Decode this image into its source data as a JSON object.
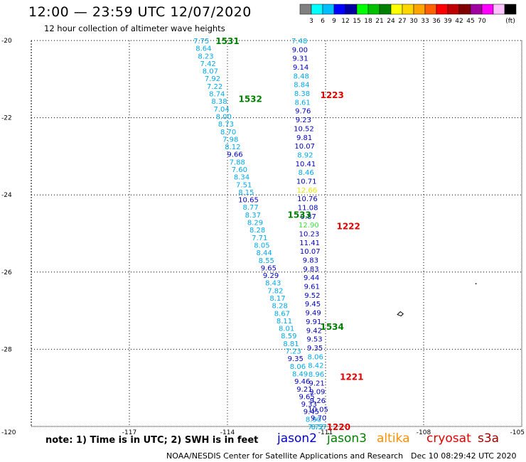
{
  "header": {
    "title": "12:00 — 23:59 UTC 12/07/2020",
    "subtitle": "12 hour collection of altimeter wave heights"
  },
  "legend": {
    "unit_label": "(ft)",
    "colors": [
      "#808080",
      "#00ffff",
      "#00bfff",
      "#0000ff",
      "#0000a0",
      "#00ff00",
      "#00c000",
      "#008000",
      "#ffff00",
      "#ffd700",
      "#ffa500",
      "#ff6000",
      "#ff0000",
      "#c00000",
      "#800000",
      "#a000a0",
      "#ff00ff",
      "#ffc0ff",
      "#000000"
    ],
    "labels": [
      "3",
      "6",
      "9",
      "12",
      "15",
      "18",
      "21",
      "24",
      "27",
      "30",
      "33",
      "36",
      "39",
      "42",
      "45",
      "70"
    ]
  },
  "footer": {
    "note": "note:  1) Time is in UTC;  2) SWH is in feet",
    "satellites": [
      {
        "name": "jason2",
        "color": "#0000c8"
      },
      {
        "name": "jason3",
        "color": "#008000"
      },
      {
        "name": "altika",
        "color": "#ff9000"
      },
      {
        "name": "cryosat",
        "color": "#e00000"
      },
      {
        "name": "s3a",
        "color": "#a00000"
      }
    ],
    "credit": "NOAA/NESDIS Center for Satellite Applications and Research",
    "timestamp": "Dec 10 08:29:42 UTC 2020"
  },
  "chart_data": {
    "type": "scatter",
    "xlim": [
      -120,
      -105
    ],
    "ylim": [
      -30,
      -20
    ],
    "x_ticks": [
      -120,
      -117,
      -114,
      -111,
      -108,
      -105
    ],
    "y_ticks": [
      -20,
      -22,
      -24,
      -26,
      -28,
      -30
    ],
    "grid": true,
    "grid_style": "dotted",
    "tracks": [
      {
        "satellite": "jason3",
        "values": [
          "7.75",
          "8.64",
          "8.23",
          "7.42",
          "8.07",
          "7.92",
          "7.22",
          "8.74",
          "8.38",
          "7.04",
          "8.00",
          "8.73",
          "8.70",
          "7.98",
          "8.12",
          "9.66",
          "7.88",
          "7.60",
          "8.34",
          "7.51",
          "8.15",
          "10.65",
          "8.77",
          "8.37",
          "8.29",
          "8.28",
          "7.71",
          "8.05",
          "8.44",
          "8.55",
          "9.65",
          "9.29",
          "8.43",
          "7.82",
          "8.17",
          "8.28",
          "8.67",
          "8.11",
          "8.01",
          "8.59",
          "8.81",
          "7.23",
          "9.35",
          "8.06",
          "8.49",
          "9.46",
          "9.21",
          "9.65",
          "9.33",
          "9.45",
          "8.90",
          "7.72"
        ],
        "start": [
          -114.8,
          -20.0
        ],
        "end": [
          -111.3,
          -30.0
        ],
        "passes": [
          {
            "label": "1531",
            "x": -114.0,
            "y": -20.0,
            "color": "#008000"
          },
          {
            "label": "1532",
            "x": -113.3,
            "y": -21.5,
            "color": "#008000"
          },
          {
            "label": "1533",
            "x": -111.8,
            "y": -24.5,
            "color": "#008000"
          },
          {
            "label": "1534",
            "x": -110.8,
            "y": -27.4,
            "color": "#008000"
          }
        ]
      },
      {
        "satellite": "cryosat",
        "values": [
          "7.48",
          "9.00",
          "9.31",
          "9.14",
          "8.48",
          "8.84",
          "8.38",
          "8.61",
          "9.76",
          "9.23",
          "10.52",
          "9.81",
          "10.07",
          "8.92",
          "10.41",
          "8.46",
          "10.71",
          "12.66",
          "10.76",
          "11.08",
          "9.87",
          "12.90",
          "10.23",
          "11.41",
          "10.07",
          "9.83",
          "9.83",
          "9.44",
          "9.61",
          "9.52",
          "9.45",
          "9.49",
          "9.91",
          "9.42",
          "9.53",
          "9.35",
          "8.06",
          "8.42",
          "8.96",
          "9.21",
          "9.09",
          "9.26",
          "10.05",
          "9.70",
          "8.57"
        ],
        "start": [
          -111.8,
          -20.0
        ],
        "end": [
          -111.2,
          -30.0
        ],
        "passes": [
          {
            "label": "1223",
            "x": -110.8,
            "y": -21.4,
            "color": "#e00000"
          },
          {
            "label": "1222",
            "x": -110.3,
            "y": -24.8,
            "color": "#e00000"
          },
          {
            "label": "1221",
            "x": -110.2,
            "y": -28.7,
            "color": "#e00000"
          },
          {
            "label": "1220",
            "x": -110.6,
            "y": -30.0,
            "color": "#e00000"
          }
        ]
      }
    ],
    "extra_marks": [
      {
        "type": "coast-outline",
        "x": -108.8,
        "y": -27.1
      },
      {
        "type": "dot",
        "x": -106.4,
        "y": -26.3
      }
    ]
  }
}
